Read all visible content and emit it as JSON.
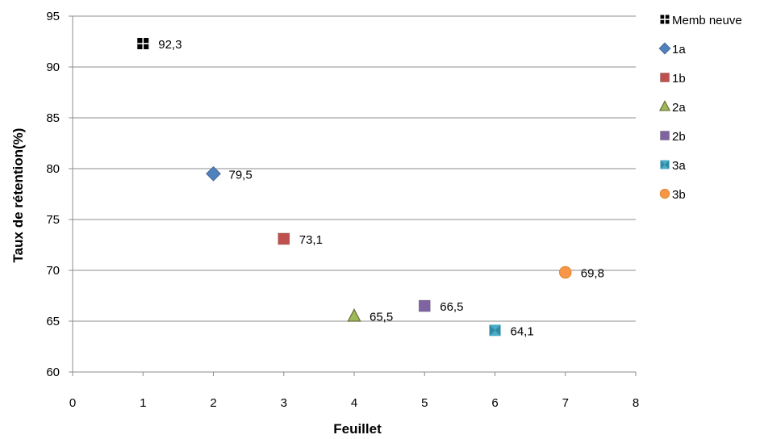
{
  "chart_data": {
    "type": "scatter",
    "title": "",
    "xlabel": "Feuillet",
    "ylabel": "Taux de rétention(%)",
    "xlim": [
      0,
      8
    ],
    "ylim": [
      60,
      95
    ],
    "xticks": [
      "0",
      "1",
      "2",
      "3",
      "4",
      "5",
      "6",
      "7",
      "8"
    ],
    "yticks": [
      "60",
      "65",
      "70",
      "75",
      "80",
      "85",
      "90",
      "95"
    ],
    "grid": "horizontal",
    "legend_position": "right",
    "series": [
      {
        "name": "Memb neuve",
        "x": 1,
        "y": 92.3,
        "label": "92,3",
        "marker": "cross-square",
        "color": "#000000"
      },
      {
        "name": "1a",
        "x": 2,
        "y": 79.5,
        "label": "79,5",
        "marker": "diamond",
        "color": "#4F81BD"
      },
      {
        "name": "1b",
        "x": 3,
        "y": 73.1,
        "label": "73,1",
        "marker": "square",
        "color": "#C0504D"
      },
      {
        "name": "2a",
        "x": 4,
        "y": 65.5,
        "label": "65,5",
        "marker": "triangle",
        "color": "#9BBB59"
      },
      {
        "name": "2b",
        "x": 5,
        "y": 66.5,
        "label": "66,5",
        "marker": "square",
        "color": "#8064A2"
      },
      {
        "name": "3a",
        "x": 6,
        "y": 64.1,
        "label": "64,1",
        "marker": "hourglass",
        "color": "#4BACC6"
      },
      {
        "name": "3b",
        "x": 7,
        "y": 69.8,
        "label": "69,8",
        "marker": "circle",
        "color": "#F79646"
      }
    ]
  }
}
